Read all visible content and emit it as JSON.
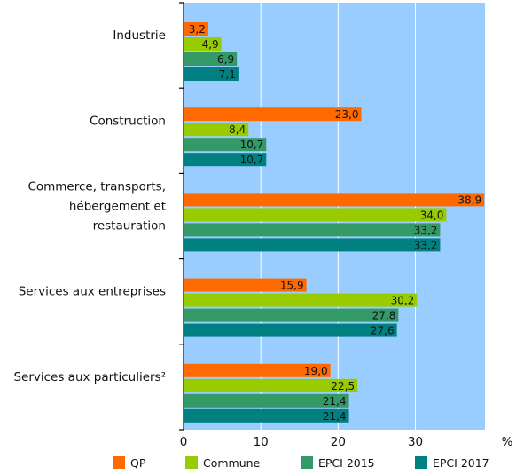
{
  "chart_data": {
    "type": "bar",
    "orientation": "horizontal",
    "categories": [
      [
        "Industrie"
      ],
      [
        "Construction"
      ],
      [
        "Commerce, transports,",
        "hébergement et",
        "restauration"
      ],
      [
        "Services aux entreprises"
      ],
      [
        "Services aux particuliers²"
      ]
    ],
    "series": [
      {
        "name": "QP",
        "color": "#ff6a00",
        "values": [
          3.2,
          23.0,
          38.9,
          15.9,
          19.0
        ],
        "labels": [
          "3,2",
          "23,0",
          "38,9",
          "15,9",
          "19,0"
        ]
      },
      {
        "name": "Commune",
        "color": "#99cc00",
        "values": [
          4.9,
          8.4,
          34.0,
          30.2,
          22.5
        ],
        "labels": [
          "4,9",
          "8,4",
          "34,0",
          "30,2",
          "22,5"
        ]
      },
      {
        "name": "EPCI 2015",
        "color": "#339966",
        "values": [
          6.9,
          10.7,
          33.2,
          27.8,
          21.4
        ],
        "labels": [
          "6,9",
          "10,7",
          "33,2",
          "27,8",
          "21,4"
        ]
      },
      {
        "name": "EPCI 2017",
        "color": "#008080",
        "values": [
          7.1,
          10.7,
          33.2,
          27.6,
          21.4
        ],
        "labels": [
          "7,1",
          "10,7",
          "33,2",
          "27,6",
          "21,4"
        ]
      }
    ],
    "x_ticks": [
      "0",
      "10",
      "20",
      "30"
    ],
    "x_unit": "%",
    "xlim": [
      0,
      39
    ],
    "plot_background": "#99ccff",
    "grid": true,
    "legend_position": "bottom"
  }
}
